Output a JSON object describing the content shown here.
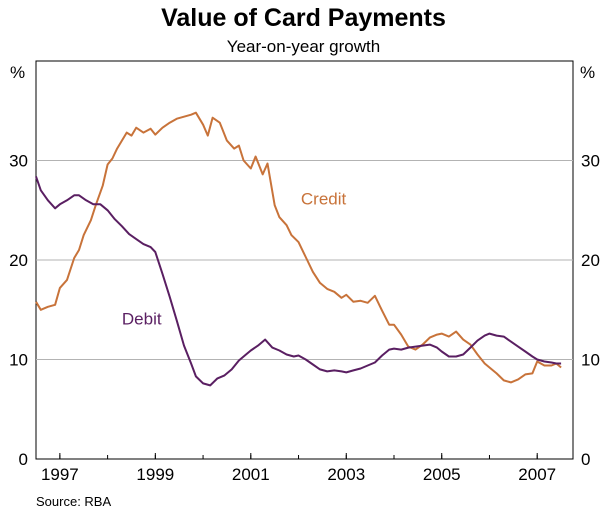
{
  "chart_data": {
    "type": "line",
    "title": "Value of Card Payments",
    "subtitle": "Year-on-year growth",
    "ylabel_left": "%",
    "ylabel_right": "%",
    "ylim": [
      0,
      40
    ],
    "yticks": [
      0,
      10,
      20,
      30
    ],
    "xlim": [
      1996.5,
      2007.75
    ],
    "xticks": [
      "1997",
      "1999",
      "2001",
      "2003",
      "2005",
      "2007"
    ],
    "grid": true,
    "source": "Source: RBA",
    "series": [
      {
        "name": "Credit",
        "color": "#C8733A",
        "x": [
          1996.5,
          1996.6,
          1996.75,
          1996.9,
          1997.0,
          1997.15,
          1997.3,
          1997.4,
          1997.5,
          1997.65,
          1997.75,
          1997.9,
          1998.0,
          1998.1,
          1998.2,
          1998.3,
          1998.4,
          1998.5,
          1998.6,
          1998.75,
          1998.9,
          1999.0,
          1999.15,
          1999.3,
          1999.45,
          1999.6,
          1999.75,
          1999.85,
          2000.0,
          2000.1,
          2000.2,
          2000.35,
          2000.5,
          2000.65,
          2000.75,
          2000.85,
          2001.0,
          2001.1,
          2001.25,
          2001.35,
          2001.5,
          2001.6,
          2001.75,
          2001.85,
          2002.0,
          2002.15,
          2002.3,
          2002.45,
          2002.6,
          2002.75,
          2002.9,
          2003.0,
          2003.15,
          2003.3,
          2003.45,
          2003.6,
          2003.75,
          2003.9,
          2004.0,
          2004.15,
          2004.3,
          2004.45,
          2004.6,
          2004.75,
          2004.9,
          2005.0,
          2005.15,
          2005.3,
          2005.45,
          2005.6,
          2005.75,
          2005.9,
          2006.0,
          2006.15,
          2006.3,
          2006.45,
          2006.6,
          2006.75,
          2006.9,
          2007.0,
          2007.15,
          2007.3,
          2007.4,
          2007.5
        ],
        "y": [
          15.8,
          15.0,
          15.3,
          15.5,
          17.2,
          18.0,
          20.2,
          21.0,
          22.5,
          24.0,
          25.5,
          27.5,
          29.6,
          30.2,
          31.2,
          32.0,
          32.8,
          32.5,
          33.3,
          32.8,
          33.2,
          32.6,
          33.3,
          33.8,
          34.2,
          34.4,
          34.6,
          34.8,
          33.6,
          32.5,
          34.3,
          33.8,
          32.0,
          31.2,
          31.5,
          30.0,
          29.2,
          30.4,
          28.6,
          29.7,
          25.5,
          24.3,
          23.5,
          22.5,
          21.8,
          20.3,
          18.8,
          17.7,
          17.1,
          16.8,
          16.2,
          16.5,
          15.8,
          15.9,
          15.7,
          16.4,
          14.9,
          13.5,
          13.5,
          12.5,
          11.3,
          11.0,
          11.5,
          12.2,
          12.5,
          12.6,
          12.3,
          12.8,
          12.0,
          11.5,
          10.5,
          9.6,
          9.2,
          8.6,
          7.9,
          7.7,
          8.0,
          8.5,
          8.6,
          9.8,
          9.4,
          9.4,
          9.6,
          9.2
        ]
      },
      {
        "name": "Debit",
        "color": "#5A1F62",
        "x": [
          1996.5,
          1996.6,
          1996.75,
          1996.9,
          1997.0,
          1997.15,
          1997.3,
          1997.4,
          1997.55,
          1997.7,
          1997.85,
          1998.0,
          1998.15,
          1998.3,
          1998.45,
          1998.6,
          1998.75,
          1998.9,
          1999.0,
          1999.15,
          1999.3,
          1999.45,
          1999.6,
          1999.75,
          1999.85,
          2000.0,
          2000.15,
          2000.3,
          2000.45,
          2000.6,
          2000.75,
          2000.9,
          2001.0,
          2001.15,
          2001.3,
          2001.45,
          2001.6,
          2001.75,
          2001.9,
          2002.0,
          2002.15,
          2002.3,
          2002.45,
          2002.6,
          2002.75,
          2002.9,
          2003.0,
          2003.15,
          2003.3,
          2003.45,
          2003.6,
          2003.75,
          2003.9,
          2004.0,
          2004.15,
          2004.3,
          2004.45,
          2004.6,
          2004.75,
          2004.9,
          2005.0,
          2005.15,
          2005.3,
          2005.45,
          2005.6,
          2005.75,
          2005.9,
          2006.0,
          2006.15,
          2006.3,
          2006.45,
          2006.6,
          2006.75,
          2006.9,
          2007.0,
          2007.15,
          2007.3,
          2007.4,
          2007.5
        ],
        "y": [
          28.4,
          27.0,
          26.0,
          25.2,
          25.6,
          26.0,
          26.5,
          26.5,
          26.0,
          25.6,
          25.6,
          25.0,
          24.1,
          23.4,
          22.6,
          22.1,
          21.6,
          21.3,
          20.8,
          18.6,
          16.3,
          13.9,
          11.4,
          9.6,
          8.3,
          7.6,
          7.4,
          8.1,
          8.4,
          9.0,
          9.9,
          10.5,
          10.9,
          11.4,
          12.0,
          11.2,
          10.9,
          10.5,
          10.3,
          10.4,
          10.0,
          9.5,
          9.0,
          8.8,
          8.9,
          8.8,
          8.7,
          8.9,
          9.1,
          9.4,
          9.7,
          10.4,
          11.0,
          11.1,
          11.0,
          11.2,
          11.3,
          11.4,
          11.5,
          11.2,
          10.8,
          10.3,
          10.3,
          10.5,
          11.2,
          11.9,
          12.4,
          12.6,
          12.4,
          12.3,
          11.8,
          11.3,
          10.8,
          10.3,
          10.0,
          9.8,
          9.7,
          9.6,
          9.6
        ]
      }
    ],
    "annotations": [
      {
        "text": "Credit",
        "series": "Credit",
        "x": 2002.05,
        "y": 25.6
      },
      {
        "text": "Debit",
        "series": "Debit",
        "x": 1998.3,
        "y": 13.5
      }
    ]
  }
}
